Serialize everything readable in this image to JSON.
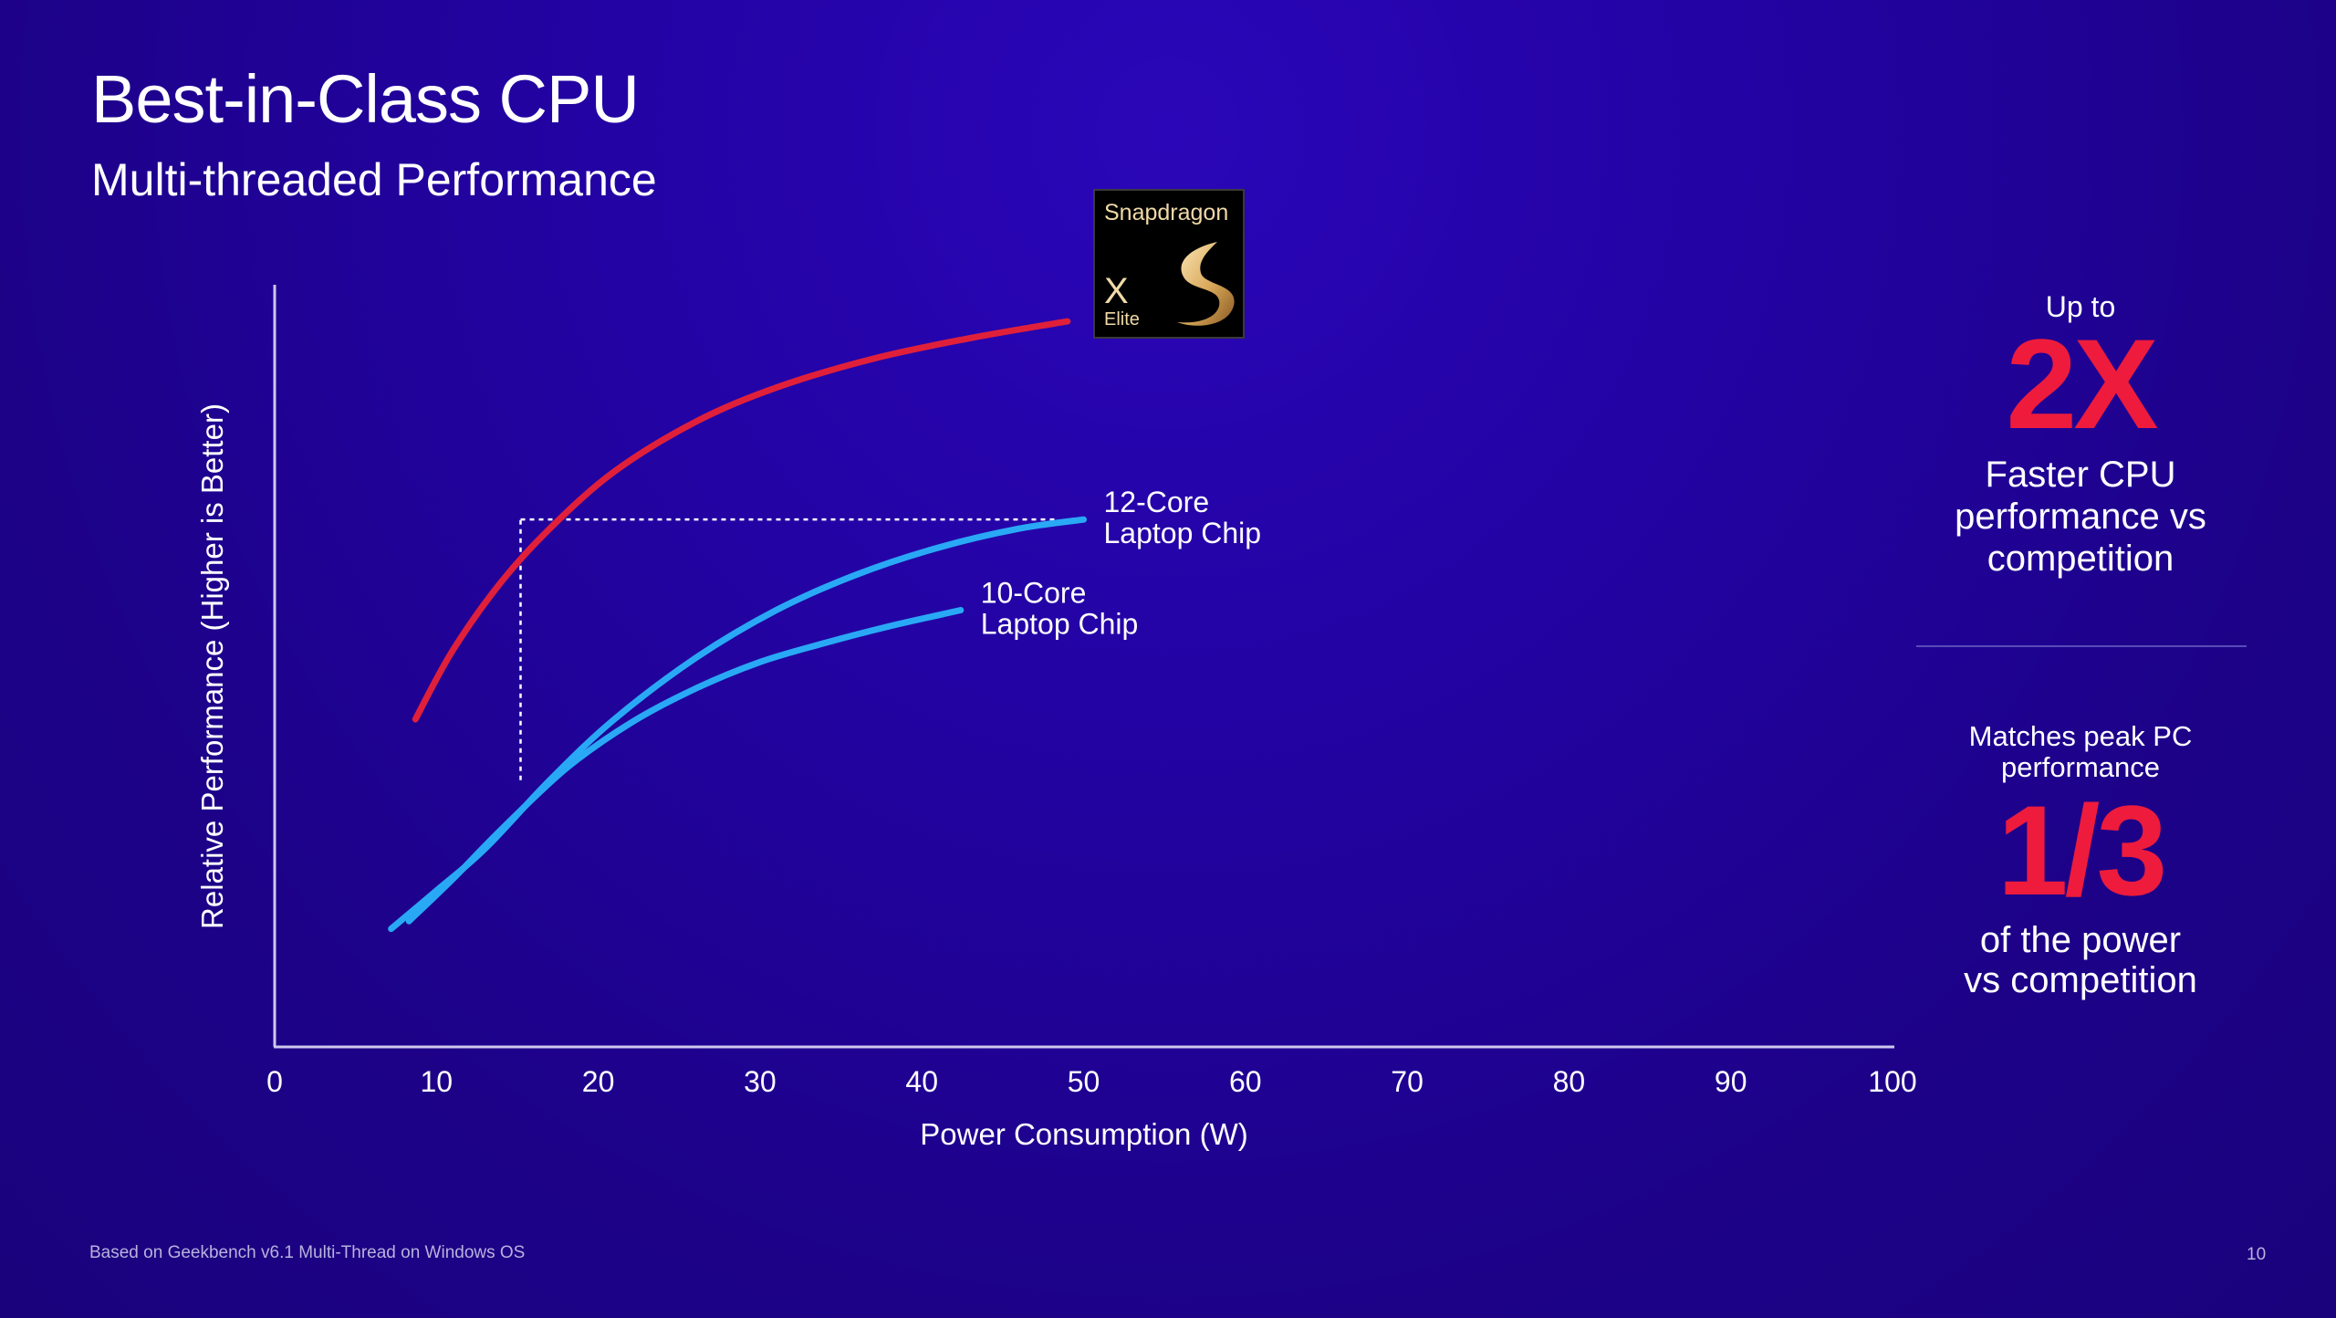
{
  "header": {
    "title": "Best-in-Class CPU",
    "subtitle": "Multi-threaded Performance"
  },
  "badge": {
    "brand": "Snapdragon",
    "model": "X",
    "tier": "Elite"
  },
  "stats": {
    "first": {
      "prefix": "Up to",
      "value": "2X",
      "desc_line1": "Faster CPU",
      "desc_line2": "performance vs",
      "desc_line3": "competition"
    },
    "second": {
      "head_line1": "Matches peak PC",
      "head_line2": "performance",
      "value": "1/3",
      "desc_line1": "of the power",
      "desc_line2": "vs competition"
    }
  },
  "footer": {
    "footnote": "Based on Geekbench v6.1 Multi-Thread on Windows OS",
    "page_number": "10"
  },
  "colors": {
    "snapdragon_curve": "#e0203a",
    "competitor_curves": "#29a9f5",
    "highlight": "#ee1b3c"
  },
  "chart_data": {
    "type": "line",
    "xlabel": "Power Consumption (W)",
    "ylabel": "Relative Performance  (Higher is Better)",
    "xlim": [
      0,
      100
    ],
    "ylim": [
      0,
      100
    ],
    "x_ticks": [
      "0",
      "10",
      "20",
      "30",
      "40",
      "50",
      "60",
      "70",
      "80",
      "90",
      "100"
    ],
    "y_ticks_shown": false,
    "grid": false,
    "series": [
      {
        "name": "",
        "label_lines": [],
        "color": "#e0203a",
        "points": [
          [
            8.7,
            43
          ],
          [
            11,
            52
          ],
          [
            14,
            61
          ],
          [
            17,
            68
          ],
          [
            21,
            75.5
          ],
          [
            26,
            82
          ],
          [
            31,
            86.5
          ],
          [
            37,
            90.3
          ],
          [
            43,
            93
          ],
          [
            49,
            95.2
          ]
        ]
      },
      {
        "name": "12-Core Laptop Chip",
        "label_lines": [
          "12-Core",
          "Laptop Chip"
        ],
        "color": "#29a9f5",
        "points": [
          [
            7.2,
            15.5
          ],
          [
            10,
            20.5
          ],
          [
            13,
            26
          ],
          [
            17,
            35
          ],
          [
            21,
            43
          ],
          [
            26,
            51
          ],
          [
            31,
            57.3
          ],
          [
            36,
            62
          ],
          [
            41,
            65.5
          ],
          [
            46,
            68
          ],
          [
            50,
            69.2
          ]
        ]
      },
      {
        "name": "10-Core Laptop Chip",
        "label_lines": [
          "10-Core",
          "Laptop Chip"
        ],
        "color": "#29a9f5",
        "points": [
          [
            8.3,
            16.5
          ],
          [
            11,
            22
          ],
          [
            14,
            28.5
          ],
          [
            18,
            36.5
          ],
          [
            22,
            42.5
          ],
          [
            26,
            47
          ],
          [
            30,
            50.5
          ],
          [
            34,
            53
          ],
          [
            38,
            55.2
          ],
          [
            42.4,
            57.3
          ]
        ]
      }
    ],
    "guides": {
      "vertical_x": 15.2,
      "vertical_y_range": [
        35,
        69.2
      ],
      "horizontal_y": 69.2,
      "horizontal_x_range": [
        15.2,
        48.2
      ]
    }
  }
}
